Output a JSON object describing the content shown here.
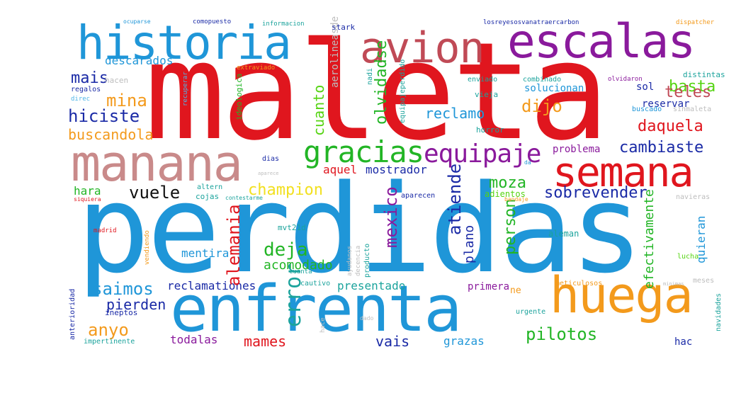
{
  "palette": {
    "red": "#e0161e",
    "blue": "#1f96d8",
    "dark_blue": "#1a2aa6",
    "purple": "#8a1a9c",
    "orange": "#f39a1c",
    "green": "#22b525",
    "lime": "#55d412",
    "rose": "#c98a8a",
    "brick": "#c04a56",
    "teal": "#1ba39c",
    "gray": "#bdbdbd",
    "black": "#111111",
    "yellow": "#f2e020",
    "light_blue": "#4fb6e8"
  },
  "words": [
    {
      "text": "maleta",
      "color": "red"
    },
    {
      "text": "perdidas",
      "color": "blue"
    },
    {
      "text": "enfrenta",
      "color": "blue"
    },
    {
      "text": "historia",
      "color": "blue"
    },
    {
      "text": "avion",
      "color": "brick"
    },
    {
      "text": "escalas",
      "color": "purple"
    },
    {
      "text": "manana",
      "color": "rose"
    },
    {
      "text": "semana",
      "color": "red"
    },
    {
      "text": "huega",
      "color": "orange"
    },
    {
      "text": "gracias",
      "color": "green"
    },
    {
      "text": "equipaje",
      "color": "purple"
    },
    {
      "text": "mais",
      "color": "dark_blue"
    },
    {
      "text": "mina",
      "color": "orange"
    },
    {
      "text": "hiciste",
      "color": "dark_blue"
    },
    {
      "text": "buscandola",
      "color": "orange"
    },
    {
      "text": "daquela",
      "color": "red"
    },
    {
      "text": "cambiaste",
      "color": "dark_blue"
    },
    {
      "text": "basta",
      "color": "lime"
    },
    {
      "text": "teles",
      "color": "brick"
    },
    {
      "text": "reservar",
      "color": "dark_blue"
    },
    {
      "text": "sol",
      "color": "dark_blue"
    },
    {
      "text": "reclamo",
      "color": "blue"
    },
    {
      "text": "dijo",
      "color": "orange"
    },
    {
      "text": "solucionan",
      "color": "blue"
    },
    {
      "text": "vuele",
      "color": "black"
    },
    {
      "text": "champion",
      "color": "yellow"
    },
    {
      "text": "moza",
      "color": "green"
    },
    {
      "text": "sobrevender",
      "color": "dark_blue"
    },
    {
      "text": "aquel",
      "color": "red"
    },
    {
      "text": "mostrador",
      "color": "dark_blue"
    },
    {
      "text": "problema",
      "color": "purple"
    },
    {
      "text": "deja",
      "color": "green"
    },
    {
      "text": "acomodado",
      "color": "green"
    },
    {
      "text": "mentira",
      "color": "blue"
    },
    {
      "text": "saimos",
      "color": "blue"
    },
    {
      "text": "pierden",
      "color": "dark_blue"
    },
    {
      "text": "anyo",
      "color": "orange"
    },
    {
      "text": "presentado",
      "color": "teal"
    },
    {
      "text": "primera",
      "color": "purple"
    },
    {
      "text": "pilotos",
      "color": "green"
    },
    {
      "text": "vais",
      "color": "dark_blue"
    },
    {
      "text": "grazas",
      "color": "blue"
    },
    {
      "text": "mames",
      "color": "red"
    },
    {
      "text": "todalas",
      "color": "purple"
    },
    {
      "text": "hac",
      "color": "dark_blue"
    },
    {
      "text": "reclamationes",
      "color": "dark_blue"
    },
    {
      "text": "hara",
      "color": "green"
    },
    {
      "text": "descarados",
      "color": "blue"
    },
    {
      "text": "cuanto",
      "color": "lime"
    },
    {
      "text": "olvidadse",
      "color": "green"
    },
    {
      "text": "aerolineasde",
      "color": "gray"
    },
    {
      "text": "alemania",
      "color": "red"
    },
    {
      "text": "mexico",
      "color": "purple"
    },
    {
      "text": "atiende",
      "color": "dark_blue"
    },
    {
      "text": "plano",
      "color": "dark_blue"
    },
    {
      "text": "person",
      "color": "green"
    },
    {
      "text": "efectivamente",
      "color": "green"
    },
    {
      "text": "quieran",
      "color": "blue"
    },
    {
      "text": "error",
      "color": "teal"
    },
    {
      "text": "stark",
      "color": "dark_blue"
    },
    {
      "text": "ocuparse",
      "color": "blue"
    },
    {
      "text": "comopuesto",
      "color": "dark_blue"
    },
    {
      "text": "informacion",
      "color": "teal"
    },
    {
      "text": "losreyesosvanatraercarbon",
      "color": "dark_blue"
    },
    {
      "text": "dispatcher",
      "color": "orange"
    },
    {
      "text": "extraviado",
      "color": "orange"
    },
    {
      "text": "enviado",
      "color": "teal"
    },
    {
      "text": "combinado",
      "color": "teal"
    },
    {
      "text": "olvidaron",
      "color": "purple"
    },
    {
      "text": "distintas",
      "color": "teal"
    },
    {
      "text": "hacen",
      "color": "gray"
    },
    {
      "text": "regalos",
      "color": "dark_blue"
    },
    {
      "text": "direc",
      "color": "light_blue"
    },
    {
      "text": "recuperar",
      "color": "light_blue"
    },
    {
      "text": "ideologica",
      "color": "green"
    },
    {
      "text": "nadi",
      "color": "teal"
    },
    {
      "text": "equipajeperdido",
      "color": "teal"
    },
    {
      "text": "vieja",
      "color": "teal"
    },
    {
      "text": "buscado",
      "color": "blue"
    },
    {
      "text": "sinmaleta",
      "color": "gray"
    },
    {
      "text": "horror",
      "color": "teal"
    },
    {
      "text": "dias",
      "color": "dark_blue"
    },
    {
      "text": "aparece",
      "color": "gray"
    },
    {
      "text": "da",
      "color": "blue"
    },
    {
      "text": "altern",
      "color": "teal"
    },
    {
      "text": "cojas",
      "color": "teal"
    },
    {
      "text": "siquiera",
      "color": "red"
    },
    {
      "text": "contestarme",
      "color": "teal"
    },
    {
      "text": "aparecen",
      "color": "dark_blue"
    },
    {
      "text": "adientos",
      "color": "lime"
    },
    {
      "text": "bandaje",
      "color": "orange"
    },
    {
      "text": "navieras",
      "color": "gray"
    },
    {
      "text": "madrid",
      "color": "red"
    },
    {
      "text": "vendiendo",
      "color": "orange"
    },
    {
      "text": "mvt21d",
      "color": "teal"
    },
    {
      "text": "aleman",
      "color": "teal"
    },
    {
      "text": "ayudanos",
      "color": "gray"
    },
    {
      "text": "decencia",
      "color": "gray"
    },
    {
      "text": "producto",
      "color": "teal"
    },
    {
      "text": "lucha",
      "color": "lime"
    },
    {
      "text": "cuanta",
      "color": "teal"
    },
    {
      "text": "cautivo",
      "color": "teal"
    },
    {
      "text": "meticulosos",
      "color": "orange"
    },
    {
      "text": "minimas",
      "color": "gray"
    },
    {
      "text": "meses",
      "color": "gray"
    },
    {
      "text": "navidades",
      "color": "teal"
    },
    {
      "text": "ne",
      "color": "orange"
    },
    {
      "text": "urgente",
      "color": "teal"
    },
    {
      "text": "ineptos",
      "color": "dark_blue"
    },
    {
      "text": "hace",
      "color": "gray"
    },
    {
      "text": "dado",
      "color": "gray"
    },
    {
      "text": "anterioridad",
      "color": "dark_blue"
    },
    {
      "text": "impertinente",
      "color": "teal"
    }
  ]
}
